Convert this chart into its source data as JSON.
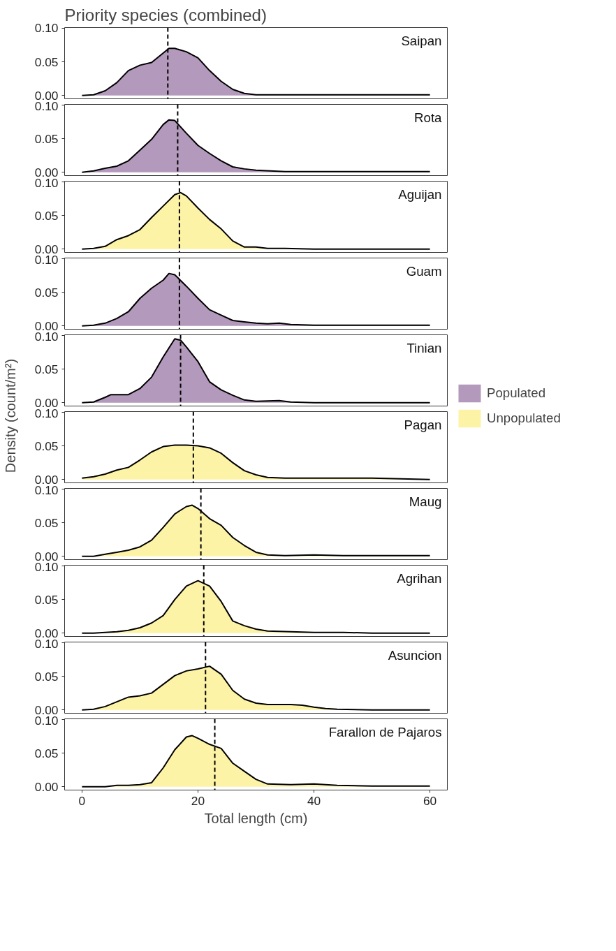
{
  "chart_data": [
    {
      "type": "area",
      "title": "Priority species (combined)",
      "annotations": [
        "Saipan"
      ],
      "x": [
        0,
        2,
        4,
        6,
        8,
        10,
        12,
        14,
        15,
        16,
        18,
        20,
        22,
        24,
        26,
        28,
        30,
        35,
        40,
        45,
        50,
        55,
        60
      ],
      "series": [
        {
          "name": "Populated",
          "color": "#b399bc",
          "values": [
            0,
            0.001,
            0.007,
            0.019,
            0.037,
            0.045,
            0.049,
            0.063,
            0.07,
            0.07,
            0.065,
            0.056,
            0.037,
            0.021,
            0.009,
            0.003,
            0.001,
            0.001,
            0.001,
            0.001,
            0.001,
            0.001,
            0.001
          ]
        }
      ],
      "ref_lines": [
        {
          "axis": "x",
          "value": 14.8,
          "color": "#000000",
          "line_style": "dashed"
        }
      ],
      "xlim": [
        -3,
        63
      ],
      "ylim": [
        -0.005,
        0.101
      ],
      "yticks": [
        {
          "value": 0,
          "label": "0.00"
        },
        {
          "value": 0.05,
          "label": "0.05"
        },
        {
          "value": 0.1,
          "label": "0.10"
        }
      ],
      "tick_labels": "y"
    },
    {
      "type": "area",
      "annotations": [
        "Rota"
      ],
      "x": [
        0,
        2,
        4,
        6,
        8,
        10,
        12,
        14,
        15,
        16,
        18,
        20,
        22,
        24,
        26,
        28,
        30,
        35,
        40,
        45,
        50,
        55,
        60
      ],
      "series": [
        {
          "name": "Populated",
          "color": "#b399bc",
          "values": [
            0,
            0.002,
            0.006,
            0.009,
            0.017,
            0.033,
            0.049,
            0.071,
            0.078,
            0.077,
            0.058,
            0.04,
            0.028,
            0.017,
            0.008,
            0.005,
            0.003,
            0.001,
            0.001,
            0.001,
            0.001,
            0.001,
            0.001
          ]
        }
      ],
      "ref_lines": [
        {
          "axis": "x",
          "value": 16.5,
          "color": "#000000",
          "line_style": "dashed"
        }
      ],
      "xlim": [
        -3,
        63
      ],
      "ylim": [
        -0.005,
        0.101
      ],
      "yticks": [
        {
          "value": 0,
          "label": "0.00"
        },
        {
          "value": 0.05,
          "label": "0.05"
        },
        {
          "value": 0.1,
          "label": "0.10"
        }
      ],
      "tick_labels": "y"
    },
    {
      "type": "area",
      "annotations": [
        "Aguijan"
      ],
      "x": [
        0,
        2,
        4,
        6,
        8,
        10,
        12,
        14,
        16,
        17,
        18,
        20,
        22,
        24,
        26,
        28,
        30,
        32,
        35,
        40,
        45,
        50,
        55,
        60
      ],
      "series": [
        {
          "name": "Unpopulated",
          "color": "#fdf3a7",
          "values": [
            0,
            0.001,
            0.004,
            0.014,
            0.02,
            0.029,
            0.047,
            0.064,
            0.081,
            0.084,
            0.079,
            0.061,
            0.044,
            0.03,
            0.012,
            0.003,
            0.003,
            0.001,
            0.001,
            0,
            0,
            0,
            0,
            0
          ]
        }
      ],
      "ref_lines": [
        {
          "axis": "x",
          "value": 16.8,
          "color": "#000000",
          "line_style": "dashed"
        }
      ],
      "xlim": [
        -3,
        63
      ],
      "ylim": [
        -0.005,
        0.101
      ],
      "yticks": [
        {
          "value": 0,
          "label": "0.00"
        },
        {
          "value": 0.05,
          "label": "0.05"
        },
        {
          "value": 0.1,
          "label": "0.10"
        }
      ],
      "tick_labels": "y"
    },
    {
      "type": "area",
      "annotations": [
        "Guam"
      ],
      "x": [
        0,
        2,
        4,
        6,
        8,
        10,
        12,
        14,
        15,
        16,
        18,
        20,
        22,
        24,
        26,
        28,
        30,
        32,
        34,
        36,
        40,
        45,
        50,
        55,
        60
      ],
      "series": [
        {
          "name": "Populated",
          "color": "#b399bc",
          "values": [
            0,
            0.001,
            0.004,
            0.011,
            0.021,
            0.041,
            0.056,
            0.068,
            0.078,
            0.076,
            0.059,
            0.041,
            0.024,
            0.016,
            0.008,
            0.006,
            0.004,
            0.003,
            0.004,
            0.002,
            0.001,
            0.001,
            0.001,
            0.001,
            0.001
          ]
        }
      ],
      "ref_lines": [
        {
          "axis": "x",
          "value": 16.8,
          "color": "#000000",
          "line_style": "dashed"
        }
      ],
      "xlim": [
        -3,
        63
      ],
      "ylim": [
        -0.005,
        0.101
      ],
      "yticks": [
        {
          "value": 0,
          "label": "0.00"
        },
        {
          "value": 0.05,
          "label": "0.05"
        },
        {
          "value": 0.1,
          "label": "0.10"
        }
      ],
      "tick_labels": "y"
    },
    {
      "type": "area",
      "annotations": [
        "Tinian"
      ],
      "legend": "right",
      "x": [
        0,
        2,
        4,
        5,
        6,
        8,
        10,
        12,
        14,
        16,
        17,
        18,
        20,
        22,
        24,
        26,
        28,
        30,
        34,
        36,
        40,
        45,
        50,
        55,
        60
      ],
      "series": [
        {
          "name": "Populated",
          "color": "#b399bc",
          "values": [
            0,
            0.001,
            0.008,
            0.012,
            0.012,
            0.012,
            0.021,
            0.038,
            0.068,
            0.095,
            0.093,
            0.083,
            0.061,
            0.031,
            0.019,
            0.011,
            0.004,
            0.002,
            0.003,
            0.001,
            0,
            0,
            0,
            0,
            0
          ]
        }
      ],
      "ref_lines": [
        {
          "axis": "x",
          "value": 17.0,
          "color": "#000000",
          "line_style": "dashed"
        }
      ],
      "xlim": [
        -3,
        63
      ],
      "ylim": [
        -0.005,
        0.101
      ],
      "yticks": [
        {
          "value": 0,
          "label": "0.00"
        },
        {
          "value": 0.05,
          "label": "0.05"
        },
        {
          "value": 0.1,
          "label": "0.10"
        }
      ],
      "tick_labels": "y"
    },
    {
      "type": "area",
      "annotations": [
        "Pagan"
      ],
      "ylabel": "Density (count/m²)",
      "x": [
        0,
        2,
        4,
        6,
        8,
        10,
        12,
        14,
        16,
        18,
        20,
        22,
        24,
        26,
        28,
        30,
        32,
        35,
        40,
        45,
        50,
        55,
        60
      ],
      "series": [
        {
          "name": "Unpopulated",
          "color": "#fdf3a7",
          "values": [
            0.002,
            0.004,
            0.008,
            0.014,
            0.018,
            0.029,
            0.041,
            0.049,
            0.051,
            0.051,
            0.05,
            0.047,
            0.039,
            0.025,
            0.013,
            0.007,
            0.003,
            0.002,
            0.002,
            0.002,
            0.002,
            0.001,
            0
          ]
        }
      ],
      "ref_lines": [
        {
          "axis": "x",
          "value": 19.2,
          "color": "#000000",
          "line_style": "dashed"
        }
      ],
      "xlim": [
        -3,
        63
      ],
      "ylim": [
        -0.005,
        0.101
      ],
      "yticks": [
        {
          "value": 0,
          "label": "0.00"
        },
        {
          "value": 0.05,
          "label": "0.05"
        },
        {
          "value": 0.1,
          "label": "0.10"
        }
      ],
      "tick_labels": "y"
    },
    {
      "type": "area",
      "annotations": [
        "Maug"
      ],
      "x": [
        0,
        2,
        4,
        6,
        8,
        10,
        12,
        14,
        16,
        18,
        19,
        20,
        22,
        24,
        26,
        28,
        30,
        32,
        35,
        40,
        45,
        50,
        55,
        60
      ],
      "series": [
        {
          "name": "Unpopulated",
          "color": "#fdf3a7",
          "values": [
            0,
            0,
            0.003,
            0.006,
            0.009,
            0.014,
            0.024,
            0.043,
            0.063,
            0.074,
            0.076,
            0.071,
            0.056,
            0.046,
            0.028,
            0.016,
            0.006,
            0.002,
            0.001,
            0.002,
            0.001,
            0.001,
            0.001,
            0.001
          ]
        }
      ],
      "ref_lines": [
        {
          "axis": "x",
          "value": 20.5,
          "color": "#000000",
          "line_style": "dashed"
        }
      ],
      "xlim": [
        -3,
        63
      ],
      "ylim": [
        -0.005,
        0.101
      ],
      "yticks": [
        {
          "value": 0,
          "label": "0.00"
        },
        {
          "value": 0.05,
          "label": "0.05"
        },
        {
          "value": 0.1,
          "label": "0.10"
        }
      ],
      "tick_labels": "y"
    },
    {
      "type": "area",
      "annotations": [
        "Agrihan"
      ],
      "x": [
        0,
        2,
        4,
        6,
        8,
        10,
        12,
        14,
        16,
        18,
        20,
        22,
        24,
        26,
        28,
        30,
        32,
        36,
        40,
        45,
        50,
        55,
        60
      ],
      "series": [
        {
          "name": "Unpopulated",
          "color": "#fdf3a7",
          "values": [
            0,
            0,
            0.001,
            0.002,
            0.004,
            0.008,
            0.015,
            0.026,
            0.05,
            0.07,
            0.078,
            0.07,
            0.047,
            0.018,
            0.011,
            0.006,
            0.003,
            0.002,
            0.001,
            0.001,
            0,
            0,
            0
          ]
        }
      ],
      "ref_lines": [
        {
          "axis": "x",
          "value": 21.0,
          "color": "#000000",
          "line_style": "dashed"
        }
      ],
      "xlim": [
        -3,
        63
      ],
      "ylim": [
        -0.005,
        0.101
      ],
      "yticks": [
        {
          "value": 0,
          "label": "0.00"
        },
        {
          "value": 0.05,
          "label": "0.05"
        },
        {
          "value": 0.1,
          "label": "0.10"
        }
      ],
      "tick_labels": "y"
    },
    {
      "type": "area",
      "annotations": [
        "Asuncion"
      ],
      "x": [
        0,
        2,
        4,
        6,
        8,
        10,
        12,
        14,
        16,
        18,
        20,
        22,
        24,
        26,
        28,
        30,
        32,
        36,
        38,
        40,
        42,
        44,
        50,
        55,
        60
      ],
      "series": [
        {
          "name": "Unpopulated",
          "color": "#fdf3a7",
          "values": [
            0,
            0.001,
            0.005,
            0.012,
            0.019,
            0.021,
            0.025,
            0.038,
            0.051,
            0.058,
            0.061,
            0.065,
            0.053,
            0.029,
            0.016,
            0.01,
            0.008,
            0.008,
            0.007,
            0.004,
            0.002,
            0.001,
            0,
            0,
            0
          ]
        }
      ],
      "ref_lines": [
        {
          "axis": "x",
          "value": 21.3,
          "color": "#000000",
          "line_style": "dashed"
        }
      ],
      "xlim": [
        -3,
        63
      ],
      "ylim": [
        -0.005,
        0.101
      ],
      "yticks": [
        {
          "value": 0,
          "label": "0.00"
        },
        {
          "value": 0.05,
          "label": "0.05"
        },
        {
          "value": 0.1,
          "label": "0.10"
        }
      ],
      "tick_labels": "y"
    },
    {
      "type": "area",
      "annotations": [
        "Farallon de Pajaros"
      ],
      "xlabel": "Total length (cm)",
      "x": [
        0,
        2,
        4,
        6,
        8,
        10,
        12,
        14,
        16,
        18,
        19,
        20,
        22,
        24,
        26,
        28,
        30,
        32,
        36,
        40,
        44,
        50,
        55,
        60
      ],
      "series": [
        {
          "name": "Unpopulated",
          "color": "#fdf3a7",
          "values": [
            0,
            0,
            0,
            0.002,
            0.002,
            0.003,
            0.006,
            0.028,
            0.055,
            0.074,
            0.076,
            0.072,
            0.063,
            0.057,
            0.035,
            0.023,
            0.011,
            0.004,
            0.003,
            0.004,
            0.002,
            0.001,
            0.001,
            0.001
          ]
        }
      ],
      "ref_lines": [
        {
          "axis": "x",
          "value": 22.9,
          "color": "#000000",
          "line_style": "dashed"
        }
      ],
      "xlim": [
        -3,
        63
      ],
      "ylim": [
        -0.005,
        0.101
      ],
      "xticks": [
        {
          "value": 0,
          "label": "0"
        },
        {
          "value": 20,
          "label": "20"
        },
        {
          "value": 40,
          "label": "40"
        },
        {
          "value": 60,
          "label": "60"
        }
      ],
      "yticks": [
        {
          "value": 0,
          "label": "0.00"
        },
        {
          "value": 0.05,
          "label": "0.05"
        },
        {
          "value": 0.1,
          "label": "0.10"
        }
      ]
    }
  ]
}
